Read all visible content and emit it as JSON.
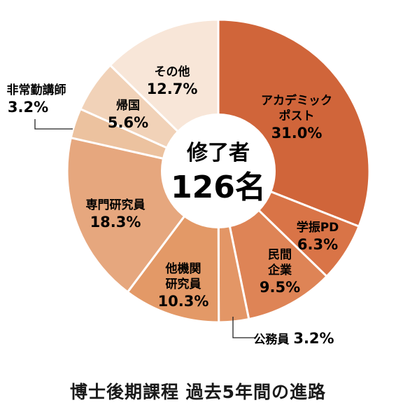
{
  "chart_data": {
    "type": "pie",
    "title": "博士後期課程 過去5年間の進路",
    "center_label": [
      "修了者",
      "126名"
    ],
    "slices": [
      {
        "name": "アカデミック\nポスト",
        "value": 31.0,
        "value_label": "31.0%",
        "color": "#d0653a"
      },
      {
        "name": "学振PD",
        "value": 6.3,
        "value_label": "6.3%",
        "color": "#d97447"
      },
      {
        "name": "民間\n企業",
        "value": 9.5,
        "value_label": "9.5%",
        "color": "#de8456"
      },
      {
        "name": "公務員",
        "value": 3.2,
        "value_label": "3.2%",
        "color": "#e39666"
      },
      {
        "name": "他機関\n研究員",
        "value": 10.3,
        "value_label": "10.3%",
        "color": "#e39967"
      },
      {
        "name": "専門研究員",
        "value": 18.3,
        "value_label": "18.3%",
        "color": "#e6a77e"
      },
      {
        "name": "非常勤講師",
        "value": 3.2,
        "value_label": "3.2%",
        "color": "#ecc29f"
      },
      {
        "name": "帰国",
        "value": 5.6,
        "value_label": "5.6%",
        "color": "#f1d2b8"
      },
      {
        "name": "その他",
        "value": 12.7,
        "value_label": "12.7%",
        "color": "#f8e6d8"
      }
    ]
  }
}
